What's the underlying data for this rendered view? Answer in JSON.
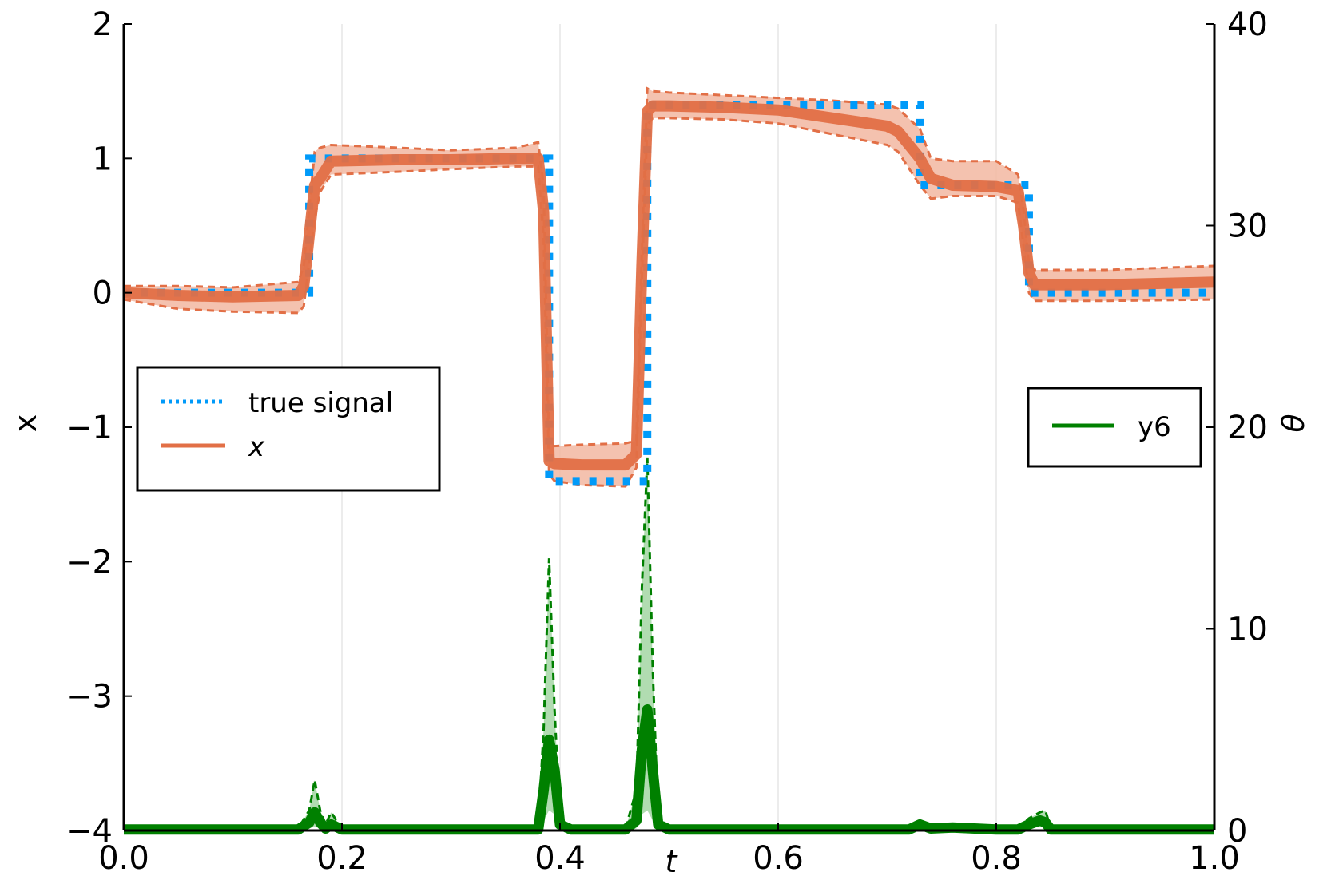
{
  "chart_data": {
    "type": "line",
    "xlabel": "t",
    "ylabel": "x",
    "y2label": "θ",
    "xlim": [
      0.0,
      1.0
    ],
    "ylim": [
      -4,
      2
    ],
    "y2lim": [
      0,
      40
    ],
    "xticks": [
      0.0,
      0.2,
      0.4,
      0.6,
      0.8,
      1.0
    ],
    "xtick_labels": [
      "0.0",
      "0.2",
      "0.4",
      "0.6",
      "0.8",
      "1.0"
    ],
    "yticks": [
      2,
      1,
      0,
      -1,
      -2,
      -3,
      -4
    ],
    "ytick_labels": [
      "2",
      "1",
      "0",
      "−1",
      "−2",
      "−3",
      "−4"
    ],
    "y2ticks": [
      40,
      30,
      20,
      10,
      0
    ],
    "y2tick_labels": [
      "40",
      "30",
      "20",
      "10",
      "0"
    ],
    "grid": "vertical only",
    "legend_left": {
      "placement": "middle-left",
      "entries": [
        "true signal",
        "x"
      ]
    },
    "legend_right": {
      "placement": "middle-right",
      "entries": [
        "y6"
      ]
    },
    "colors": {
      "true_signal": "#009af9",
      "x": "#e26f46",
      "x_band": "#f2b7a1",
      "theta": "#008000",
      "theta_band": "#a8d8a8"
    },
    "series": [
      {
        "name": "true signal",
        "axis": "left",
        "style": "dotted",
        "x": [
          0.0,
          0.17,
          0.17,
          0.39,
          0.39,
          0.48,
          0.48,
          0.73,
          0.73,
          0.83,
          0.83,
          1.0
        ],
        "y": [
          0.0,
          0.0,
          1.0,
          1.0,
          -1.4,
          -1.4,
          1.4,
          1.4,
          0.8,
          0.8,
          0.0,
          0.0
        ]
      },
      {
        "name": "x",
        "axis": "left",
        "style": "solid",
        "x": [
          0.0,
          0.05,
          0.1,
          0.16,
          0.165,
          0.175,
          0.18,
          0.19,
          0.25,
          0.3,
          0.36,
          0.38,
          0.385,
          0.39,
          0.395,
          0.42,
          0.46,
          0.47,
          0.475,
          0.48,
          0.485,
          0.5,
          0.55,
          0.6,
          0.65,
          0.7,
          0.71,
          0.73,
          0.74,
          0.76,
          0.8,
          0.82,
          0.825,
          0.83,
          0.835,
          0.9,
          1.0
        ],
        "y": [
          0.0,
          -0.02,
          -0.03,
          -0.02,
          0.05,
          0.8,
          0.85,
          0.98,
          0.99,
          0.99,
          1.0,
          1.0,
          0.6,
          -1.25,
          -1.27,
          -1.28,
          -1.28,
          -1.2,
          0.2,
          1.35,
          1.39,
          1.39,
          1.38,
          1.36,
          1.3,
          1.24,
          1.2,
          1.0,
          0.85,
          0.8,
          0.79,
          0.76,
          0.5,
          0.15,
          0.06,
          0.06,
          0.08
        ],
        "lower": [
          -0.05,
          -0.12,
          -0.14,
          -0.15,
          -0.1,
          0.55,
          0.75,
          0.88,
          0.9,
          0.92,
          0.94,
          0.94,
          0.4,
          -1.35,
          -1.4,
          -1.43,
          -1.44,
          -1.3,
          0.1,
          1.25,
          1.3,
          1.3,
          1.29,
          1.26,
          1.18,
          1.1,
          1.05,
          0.8,
          0.7,
          0.72,
          0.72,
          0.67,
          0.35,
          0.0,
          -0.06,
          -0.06,
          -0.05
        ],
        "upper": [
          0.05,
          0.05,
          0.04,
          0.08,
          0.2,
          1.05,
          1.08,
          1.1,
          1.08,
          1.06,
          1.08,
          1.12,
          0.8,
          -1.13,
          -1.14,
          -1.13,
          -1.12,
          -1.1,
          0.3,
          1.52,
          1.5,
          1.49,
          1.47,
          1.45,
          1.43,
          1.4,
          1.37,
          1.22,
          1.0,
          0.98,
          0.98,
          0.88,
          0.62,
          0.22,
          0.17,
          0.17,
          0.2
        ]
      },
      {
        "name": "y6",
        "axis": "right",
        "style": "solid",
        "x": [
          0.0,
          0.16,
          0.17,
          0.175,
          0.18,
          0.185,
          0.19,
          0.2,
          0.38,
          0.385,
          0.39,
          0.395,
          0.4,
          0.41,
          0.46,
          0.47,
          0.475,
          0.48,
          0.485,
          0.49,
          0.5,
          0.72,
          0.73,
          0.74,
          0.76,
          0.8,
          0.82,
          0.83,
          0.84,
          0.845,
          0.85,
          0.9,
          1.0
        ],
        "y": [
          0.05,
          0.05,
          0.4,
          0.9,
          0.4,
          0.1,
          0.3,
          0.05,
          0.05,
          2.0,
          4.5,
          3.0,
          0.3,
          0.05,
          0.05,
          0.5,
          4.0,
          6.0,
          3.0,
          0.3,
          0.05,
          0.05,
          0.3,
          0.1,
          0.15,
          0.05,
          0.05,
          0.3,
          0.5,
          0.4,
          0.05,
          0.05,
          0.05
        ],
        "upper": [
          0.1,
          0.1,
          1.0,
          2.5,
          1.0,
          0.3,
          0.9,
          0.1,
          0.1,
          5.0,
          13.5,
          6.0,
          0.5,
          0.1,
          0.1,
          2.0,
          12.0,
          18.5,
          8.0,
          0.5,
          0.1,
          0.1,
          0.5,
          0.2,
          0.3,
          0.1,
          0.1,
          0.6,
          0.9,
          1.0,
          0.1,
          0.1,
          0.1
        ],
        "lower": [
          0.0,
          0.0,
          0.1,
          0.2,
          0.1,
          0.0,
          0.0,
          0.0,
          0.0,
          0.5,
          1.0,
          0.8,
          0.0,
          0.0,
          0.0,
          0.1,
          0.8,
          1.0,
          0.5,
          0.0,
          0.0,
          0.0,
          0.1,
          0.0,
          0.0,
          0.0,
          0.0,
          0.1,
          0.2,
          0.1,
          0.0,
          0.0,
          0.0
        ]
      }
    ]
  }
}
